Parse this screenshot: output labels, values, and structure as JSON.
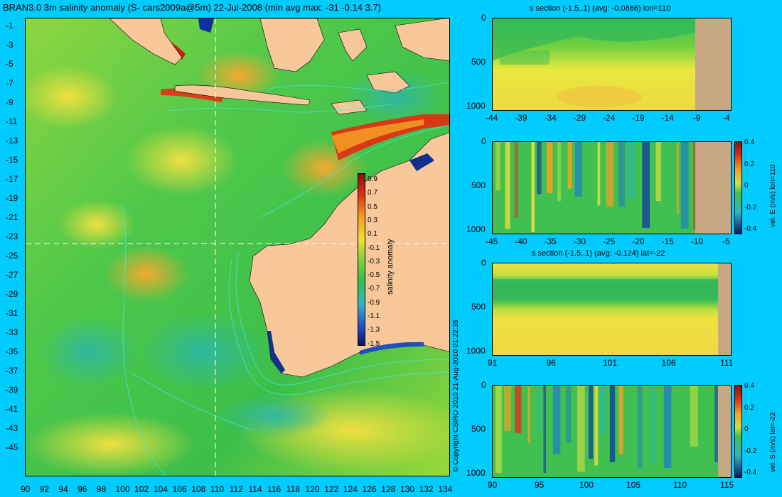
{
  "title": "BRAN3.0 3m salinity anomaly (S- cars2009a@5m) 22-Jul-2008 (min avg max: -31 -0.14 3.7)",
  "copyright": "© Copyright CSIRO 2010   21-Aug-2010 01:22:35",
  "colors": {
    "background": "#00ccff",
    "land": "#f8c89a",
    "section_land": "#c8a882"
  },
  "map": {
    "lon_ticks": [
      "90",
      "92",
      "94",
      "96",
      "98",
      "100",
      "102",
      "104",
      "106",
      "108",
      "110",
      "112",
      "114",
      "116",
      "118",
      "120",
      "122",
      "124",
      "126",
      "128",
      "130",
      "132",
      "134"
    ],
    "lat_ticks": [
      "-1",
      "-3",
      "-5",
      "-7",
      "-9",
      "-11",
      "-13",
      "-15",
      "-17",
      "-19",
      "-21",
      "-23",
      "-25",
      "-27",
      "-29",
      "-31",
      "-33",
      "-35",
      "-37",
      "-39",
      "-41",
      "-43",
      "-45"
    ],
    "crosshair": {
      "lon": 110,
      "lat": -22
    },
    "colorbar": {
      "label": "salinity anomaly",
      "ticks": [
        "0.9",
        "0.7",
        "0.5",
        "0.3",
        "0.1",
        "-0.1",
        "-0.3",
        "-0.5",
        "-0.7",
        "-0.9",
        "-1.1",
        "-1.3",
        "-1.5"
      ]
    }
  },
  "sections": [
    {
      "title": "s section (-1.5,.1) (avg: -0.0866) lon=110",
      "xticks": [
        "-44",
        "-39",
        "-34",
        "-29",
        "-24",
        "-19",
        "-14",
        "-9",
        "-4"
      ],
      "yticks": [
        "0",
        "500",
        "1000"
      ],
      "colorbar": null
    },
    {
      "title": "",
      "xticks": [
        "-45",
        "-40",
        "-35",
        "-30",
        "-25",
        "-20",
        "-15",
        "-10",
        "-5"
      ],
      "yticks": [
        "0",
        "500",
        "1000"
      ],
      "colorbar": {
        "label": "vel. E (m/s) lon=110",
        "ticks": [
          "0.4",
          "0.2",
          "0",
          "-0.2",
          "-0.4"
        ]
      }
    },
    {
      "title": "s section (-1.5,.1) (avg: -0.124) lat=-22",
      "xticks": [
        "91",
        "96",
        "101",
        "106",
        "111"
      ],
      "yticks": [
        "0",
        "500",
        "1000"
      ],
      "colorbar": null
    },
    {
      "title": "",
      "xticks": [
        "90",
        "95",
        "100",
        "105",
        "110",
        "115"
      ],
      "yticks": [
        "0",
        "500",
        "1000"
      ],
      "colorbar": {
        "label": "vel. S (m/s) lat=-22",
        "ticks": [
          "0.4",
          "0.2",
          "0",
          "-0.2",
          "-0.4"
        ]
      }
    }
  ]
}
